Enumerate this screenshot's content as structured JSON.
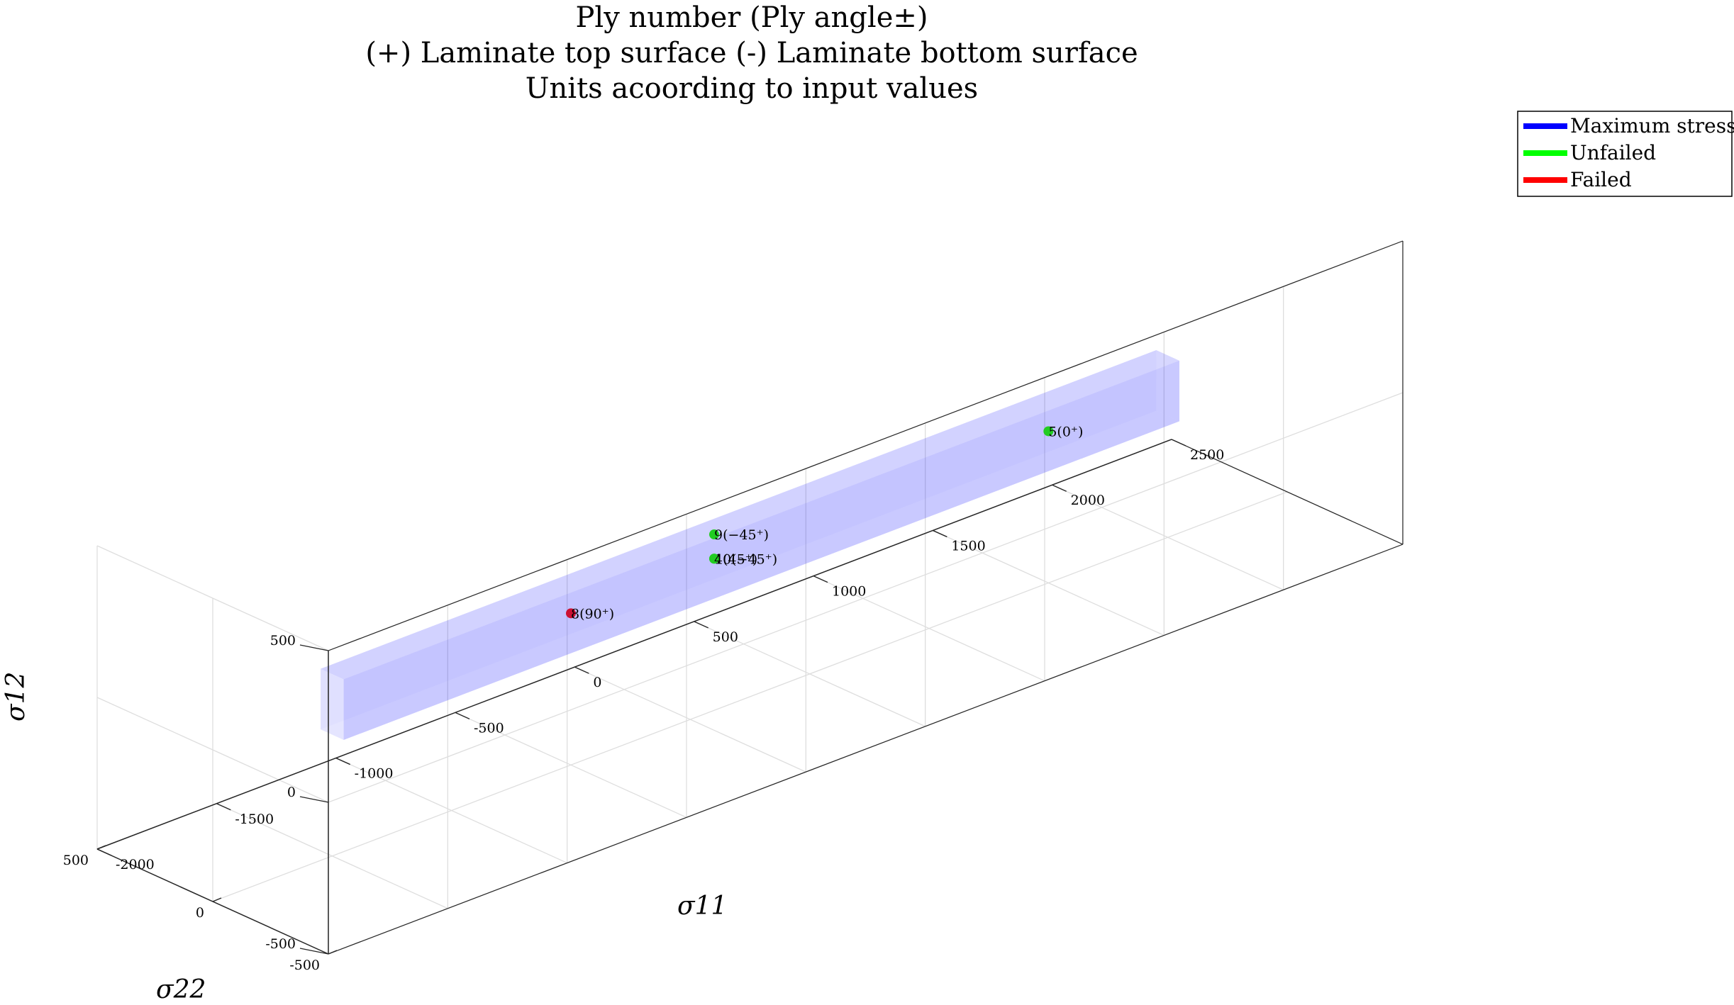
{
  "chart_data": {
    "type": "scatter3d",
    "title": [
      "Ply number (Ply angle±)",
      "(+) Laminate top surface (-) Laminate bottom surface",
      "Units acoording to input values"
    ],
    "xlabel": "σ11",
    "ylabel": "σ22",
    "zlabel": "σ12",
    "xlim": [
      -2000,
      2500
    ],
    "ylim": [
      -500,
      500
    ],
    "zlim": [
      -500,
      500
    ],
    "x_ticks": [
      -2000,
      -1500,
      -1000,
      -500,
      0,
      500,
      1000,
      1500,
      2000,
      2500
    ],
    "y_ticks": [
      -500,
      0,
      500
    ],
    "z_ticks": [
      -500,
      0,
      500
    ],
    "x_tick_labels": [
      "-2000",
      "-1500",
      "-1000",
      "-500",
      "0",
      "500",
      "1000",
      "1500",
      "2000",
      "2500"
    ],
    "y_tick_labels": [
      "-500",
      "0",
      "500"
    ],
    "z_tick_labels": [
      "-500",
      "0",
      "500"
    ],
    "grid": true,
    "legend_position": "top-right",
    "legend": [
      {
        "name": "Maximum stress",
        "color": "#0000ff"
      },
      {
        "name": "Unfailed",
        "color": "#00ff00"
      },
      {
        "name": "Failed",
        "color": "#ff0000"
      }
    ],
    "envelope": {
      "name": "Maximum stress",
      "color": "#0000ff",
      "x_range": [
        -1500,
        2000
      ],
      "y_range": [
        -50,
        50
      ],
      "z_range": [
        -100,
        100
      ]
    },
    "points": [
      {
        "label": "5(0⁺)",
        "x": 1500,
        "y": 0,
        "z": 0,
        "status": "Unfailed",
        "color": "#22cc22"
      },
      {
        "label": "9(−45⁺)",
        "x": 100,
        "y": 0,
        "z": 80,
        "status": "Unfailed",
        "color": "#22cc22"
      },
      {
        "label": "10(−45⁺)",
        "x": 100,
        "y": 0,
        "z": 0,
        "status": "Unfailed",
        "color": "#22cc22"
      },
      {
        "label": "4(45⁺)",
        "x": 100,
        "y": 0,
        "z": 0,
        "status": "Unfailed",
        "color": "#22cc22"
      },
      {
        "label": "8(90⁺)",
        "x": -500,
        "y": 0,
        "z": 0,
        "status": "Failed",
        "color": "#cc1133"
      }
    ]
  }
}
